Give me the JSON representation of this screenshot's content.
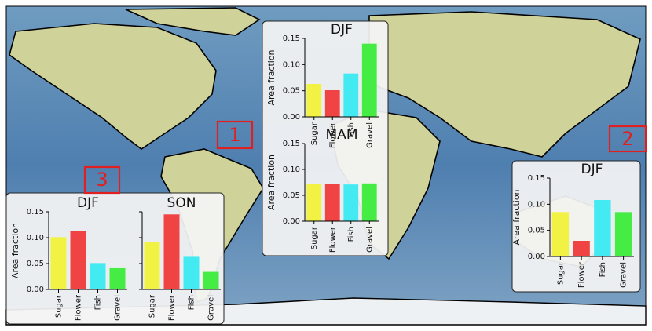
{
  "annotations": [
    "1",
    "2",
    "3"
  ],
  "chart_data": [
    {
      "type": "bar",
      "title": "DJF",
      "ylabel": "Area fraction",
      "categories": [
        "Sugar",
        "Flower",
        "Fish",
        "Gravel"
      ],
      "values": [
        0.063,
        0.051,
        0.083,
        0.14
      ],
      "colors": [
        "#f2f244",
        "#f04444",
        "#44eaf2",
        "#44ec44"
      ],
      "ylim": [
        0,
        0.15
      ],
      "yticks": [
        {
          "value": 0,
          "label": "0.00"
        },
        {
          "value": 0.05,
          "label": "0.05"
        },
        {
          "value": 0.1,
          "label": "0.10"
        },
        {
          "value": 0.15,
          "label": "0.15"
        }
      ]
    },
    {
      "type": "bar",
      "title": "MAM",
      "ylabel": "Area fraction",
      "categories": [
        "Sugar",
        "Flower",
        "Fish",
        "Gravel"
      ],
      "values": [
        0.072,
        0.072,
        0.071,
        0.073
      ],
      "colors": [
        "#f2f244",
        "#f04444",
        "#44eaf2",
        "#44ec44"
      ],
      "ylim": [
        0,
        0.15
      ],
      "yticks": [
        {
          "value": 0,
          "label": "0.00"
        },
        {
          "value": 0.05,
          "label": "0.05"
        },
        {
          "value": 0.1,
          "label": "0.10"
        },
        {
          "value": 0.15,
          "label": "0.15"
        }
      ]
    },
    {
      "type": "bar",
      "title": "DJF",
      "ylabel": "Area fraction",
      "categories": [
        "Sugar",
        "Flower",
        "Fish",
        "Gravel"
      ],
      "values": [
        0.085,
        0.03,
        0.108,
        0.085
      ],
      "colors": [
        "#f2f244",
        "#f04444",
        "#44eaf2",
        "#44ec44"
      ],
      "ylim": [
        0,
        0.15
      ],
      "yticks": [
        {
          "value": 0,
          "label": "0.00"
        },
        {
          "value": 0.05,
          "label": "0.05"
        },
        {
          "value": 0.1,
          "label": "0.10"
        },
        {
          "value": 0.15,
          "label": "0.15"
        }
      ]
    },
    {
      "type": "bar",
      "title": "DJF",
      "ylabel": "Area fraction",
      "categories": [
        "Sugar",
        "Flower",
        "Fish",
        "Gravel"
      ],
      "values": [
        0.101,
        0.113,
        0.051,
        0.041
      ],
      "colors": [
        "#f2f244",
        "#f04444",
        "#44eaf2",
        "#44ec44"
      ],
      "ylim": [
        0,
        0.15
      ],
      "yticks": [
        {
          "value": 0,
          "label": "0.00"
        },
        {
          "value": 0.05,
          "label": "0.05"
        },
        {
          "value": 0.1,
          "label": "0.10"
        },
        {
          "value": 0.15,
          "label": "0.15"
        }
      ]
    },
    {
      "type": "bar",
      "title": "SON",
      "categories": [
        "Sugar",
        "Flower",
        "Fish",
        "Gravel"
      ],
      "values": [
        0.091,
        0.145,
        0.063,
        0.034
      ],
      "colors": [
        "#f2f244",
        "#f04444",
        "#44eaf2",
        "#44ec44"
      ],
      "ylim": [
        0,
        0.15
      ],
      "yticks": [
        0,
        0.05,
        0.1,
        0.15
      ]
    }
  ]
}
